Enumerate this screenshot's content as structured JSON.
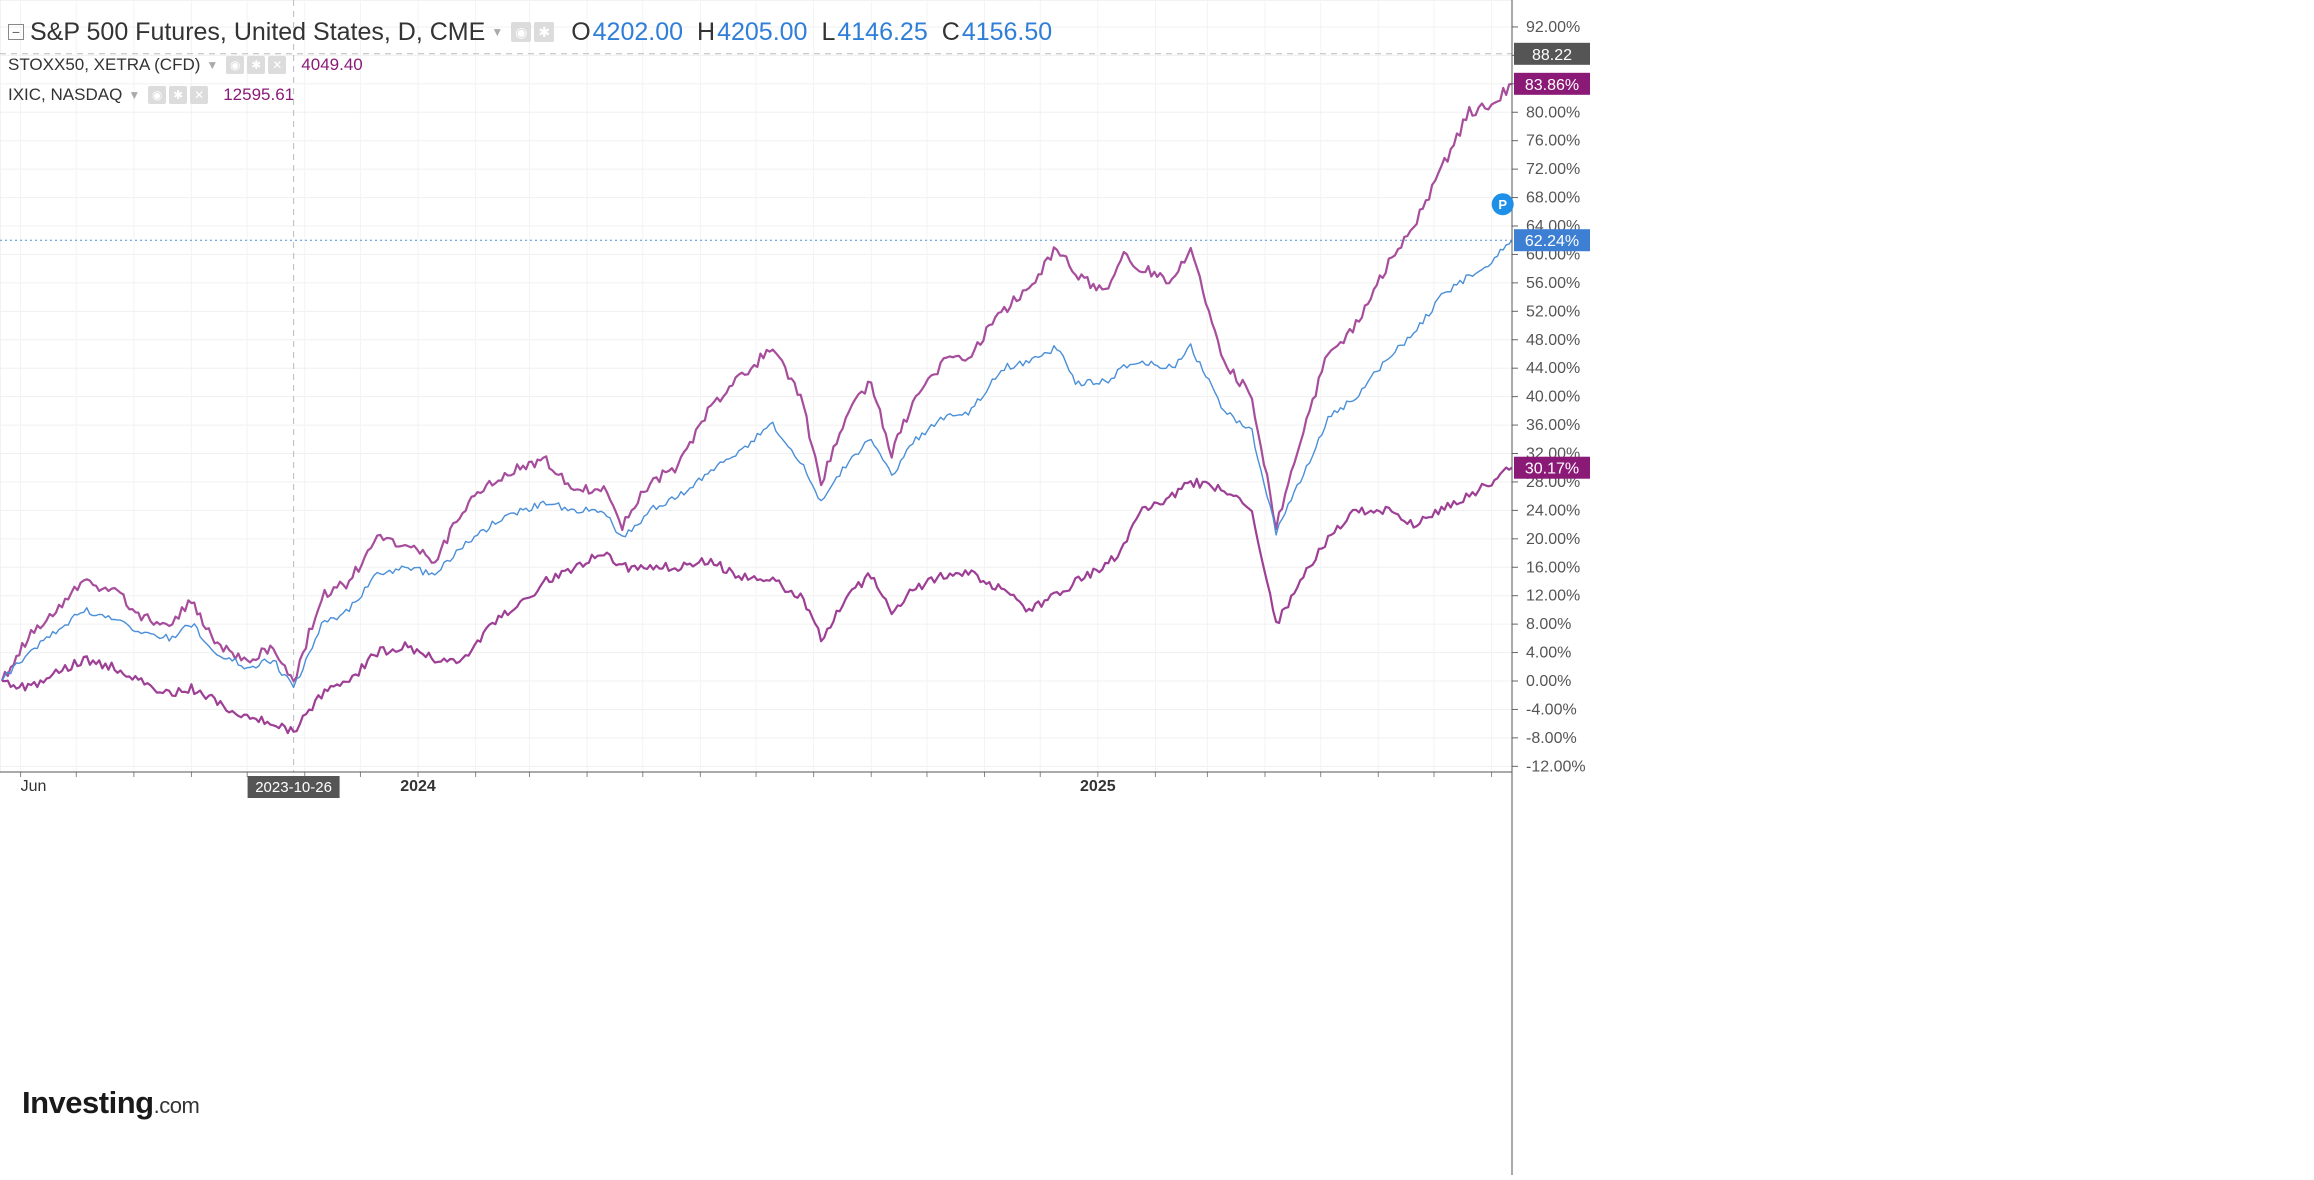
{
  "legend": {
    "main": {
      "symbol": "S&P 500 Futures, United States, D, CME",
      "o_label": "O",
      "o_value": "4202.00",
      "h_label": "H",
      "h_value": "4205.00",
      "l_label": "L",
      "l_value": "4146.25",
      "c_label": "C",
      "c_value": "4156.50"
    },
    "series": [
      {
        "label": "STOXX50, XETRA (CFD)",
        "value": "4049.40"
      },
      {
        "label": "IXIC, NASDAQ",
        "value": "12595.61"
      }
    ]
  },
  "logo": {
    "text": "Investing",
    "suffix": ".com"
  },
  "colors": {
    "sp500": "#4a8fd9",
    "stoxx": "#a64d9c",
    "ixic": "#9e3f96",
    "badge_purple": "#8b1a77",
    "badge_blue": "#3d7fd3",
    "badge_gray": "#555555"
  },
  "badges": {
    "crosshair_value": "88.22",
    "stoxx_last": "83.86%",
    "sp500_last": "62.24%",
    "ixic_last": "30.17%",
    "p_marker": "P",
    "date_hover": "2023-10-26"
  },
  "chart_data": {
    "type": "line",
    "title": "",
    "xlabel": "",
    "ylabel": "",
    "x_ticks": [
      {
        "date": "2023-06-01",
        "label": "Jun"
      },
      {
        "date": "2024-01-01",
        "label": "2024"
      },
      {
        "date": "2025-01-01",
        "label": "2025"
      }
    ],
    "x_range": [
      "2023-05-22",
      "2025-08-12"
    ],
    "ylim": [
      -12,
      94
    ],
    "y_ticks": [
      -12,
      -8,
      -4,
      0,
      4,
      8,
      12,
      16,
      20,
      24,
      28,
      32,
      36,
      40,
      44,
      48,
      52,
      56,
      60,
      64,
      68,
      72,
      76,
      80,
      84,
      88,
      92
    ],
    "y_tick_format": "percent_2dp",
    "grid": true,
    "crosshair": {
      "date": "2023-10-26",
      "value": 88.22
    },
    "series": [
      {
        "key": "stoxx",
        "points": [
          [
            "2023-05-22",
            0
          ],
          [
            "2023-06-05",
            6
          ],
          [
            "2023-06-20",
            10
          ],
          [
            "2023-07-05",
            14
          ],
          [
            "2023-07-20",
            13
          ],
          [
            "2023-08-05",
            9
          ],
          [
            "2023-08-20",
            8
          ],
          [
            "2023-09-01",
            11
          ],
          [
            "2023-09-15",
            5
          ],
          [
            "2023-10-01",
            3
          ],
          [
            "2023-10-15",
            5
          ],
          [
            "2023-10-26",
            0
          ],
          [
            "2023-11-10",
            12
          ],
          [
            "2023-11-25",
            14
          ],
          [
            "2023-12-10",
            20
          ],
          [
            "2023-12-25",
            19
          ],
          [
            "2024-01-10",
            17
          ],
          [
            "2024-01-25",
            24
          ],
          [
            "2024-02-10",
            28
          ],
          [
            "2024-02-25",
            30
          ],
          [
            "2024-03-10",
            31
          ],
          [
            "2024-03-25",
            27
          ],
          [
            "2024-04-10",
            27
          ],
          [
            "2024-04-20",
            22
          ],
          [
            "2024-05-05",
            28
          ],
          [
            "2024-05-20",
            30
          ],
          [
            "2024-06-05",
            38
          ],
          [
            "2024-06-20",
            42
          ],
          [
            "2024-07-10",
            47
          ],
          [
            "2024-07-25",
            40
          ],
          [
            "2024-08-05",
            28
          ],
          [
            "2024-08-20",
            38
          ],
          [
            "2024-09-01",
            42
          ],
          [
            "2024-09-12",
            32
          ],
          [
            "2024-09-25",
            40
          ],
          [
            "2024-10-10",
            45
          ],
          [
            "2024-10-25",
            46
          ],
          [
            "2024-11-10",
            52
          ],
          [
            "2024-11-25",
            55
          ],
          [
            "2024-12-10",
            61
          ],
          [
            "2024-12-20",
            57
          ],
          [
            "2025-01-05",
            55
          ],
          [
            "2025-01-15",
            60
          ],
          [
            "2025-01-25",
            58
          ],
          [
            "2025-02-10",
            56
          ],
          [
            "2025-02-20",
            61
          ],
          [
            "2025-03-10",
            45
          ],
          [
            "2025-03-25",
            40
          ],
          [
            "2025-04-07",
            22
          ],
          [
            "2025-04-20",
            34
          ],
          [
            "2025-05-05",
            46
          ],
          [
            "2025-05-20",
            50
          ],
          [
            "2025-06-05",
            58
          ],
          [
            "2025-06-20",
            64
          ],
          [
            "2025-07-05",
            72
          ],
          [
            "2025-07-20",
            80
          ],
          [
            "2025-08-01",
            81
          ],
          [
            "2025-08-12",
            84
          ]
        ]
      },
      {
        "key": "sp500",
        "points": [
          [
            "2023-05-22",
            0
          ],
          [
            "2023-06-05",
            4
          ],
          [
            "2023-06-20",
            7
          ],
          [
            "2023-07-05",
            10
          ],
          [
            "2023-07-20",
            9
          ],
          [
            "2023-08-05",
            7
          ],
          [
            "2023-08-20",
            6
          ],
          [
            "2023-09-01",
            8
          ],
          [
            "2023-09-15",
            4
          ],
          [
            "2023-10-01",
            2
          ],
          [
            "2023-10-15",
            3
          ],
          [
            "2023-10-26",
            -1
          ],
          [
            "2023-11-10",
            8
          ],
          [
            "2023-11-25",
            10
          ],
          [
            "2023-12-10",
            15
          ],
          [
            "2023-12-25",
            16
          ],
          [
            "2024-01-10",
            15
          ],
          [
            "2024-01-25",
            19
          ],
          [
            "2024-02-10",
            22
          ],
          [
            "2024-02-25",
            24
          ],
          [
            "2024-03-10",
            25
          ],
          [
            "2024-03-25",
            24
          ],
          [
            "2024-04-10",
            24
          ],
          [
            "2024-04-20",
            20
          ],
          [
            "2024-05-05",
            24
          ],
          [
            "2024-05-20",
            26
          ],
          [
            "2024-06-05",
            29
          ],
          [
            "2024-06-20",
            32
          ],
          [
            "2024-07-10",
            36
          ],
          [
            "2024-07-25",
            31
          ],
          [
            "2024-08-05",
            25
          ],
          [
            "2024-08-20",
            31
          ],
          [
            "2024-09-01",
            34
          ],
          [
            "2024-09-12",
            29
          ],
          [
            "2024-09-25",
            34
          ],
          [
            "2024-10-10",
            37
          ],
          [
            "2024-10-25",
            38
          ],
          [
            "2024-11-10",
            44
          ],
          [
            "2024-11-25",
            45
          ],
          [
            "2024-12-10",
            47
          ],
          [
            "2024-12-20",
            42
          ],
          [
            "2025-01-05",
            42
          ],
          [
            "2025-01-15",
            44
          ],
          [
            "2025-01-25",
            45
          ],
          [
            "2025-02-10",
            44
          ],
          [
            "2025-02-20",
            47
          ],
          [
            "2025-03-10",
            38
          ],
          [
            "2025-03-25",
            35
          ],
          [
            "2025-04-07",
            21
          ],
          [
            "2025-04-20",
            28
          ],
          [
            "2025-05-05",
            37
          ],
          [
            "2025-05-20",
            40
          ],
          [
            "2025-06-05",
            45
          ],
          [
            "2025-06-20",
            49
          ],
          [
            "2025-07-05",
            54
          ],
          [
            "2025-07-20",
            57
          ],
          [
            "2025-08-01",
            59
          ],
          [
            "2025-08-12",
            62
          ]
        ]
      },
      {
        "key": "ixic",
        "points": [
          [
            "2023-05-22",
            0
          ],
          [
            "2023-06-05",
            -1
          ],
          [
            "2023-06-20",
            1
          ],
          [
            "2023-07-05",
            3
          ],
          [
            "2023-07-20",
            2
          ],
          [
            "2023-08-05",
            0
          ],
          [
            "2023-08-20",
            -2
          ],
          [
            "2023-09-01",
            -1
          ],
          [
            "2023-09-15",
            -3
          ],
          [
            "2023-10-01",
            -5
          ],
          [
            "2023-10-15",
            -6
          ],
          [
            "2023-10-26",
            -7
          ],
          [
            "2023-11-10",
            -2
          ],
          [
            "2023-11-25",
            0
          ],
          [
            "2023-12-10",
            4
          ],
          [
            "2023-12-25",
            5
          ],
          [
            "2024-01-10",
            3
          ],
          [
            "2024-01-25",
            3
          ],
          [
            "2024-02-10",
            8
          ],
          [
            "2024-02-25",
            11
          ],
          [
            "2024-03-10",
            14
          ],
          [
            "2024-03-25",
            16
          ],
          [
            "2024-04-10",
            18
          ],
          [
            "2024-04-20",
            16
          ],
          [
            "2024-05-05",
            16
          ],
          [
            "2024-05-20",
            16
          ],
          [
            "2024-06-05",
            17
          ],
          [
            "2024-06-20",
            15
          ],
          [
            "2024-07-10",
            14
          ],
          [
            "2024-07-25",
            12
          ],
          [
            "2024-08-05",
            6
          ],
          [
            "2024-08-20",
            12
          ],
          [
            "2024-09-01",
            15
          ],
          [
            "2024-09-12",
            10
          ],
          [
            "2024-09-25",
            13
          ],
          [
            "2024-10-10",
            15
          ],
          [
            "2024-10-25",
            15
          ],
          [
            "2024-11-10",
            13
          ],
          [
            "2024-11-25",
            10
          ],
          [
            "2024-12-10",
            12
          ],
          [
            "2024-12-20",
            14
          ],
          [
            "2025-01-05",
            16
          ],
          [
            "2025-01-15",
            19
          ],
          [
            "2025-01-25",
            24
          ],
          [
            "2025-02-10",
            26
          ],
          [
            "2025-02-20",
            28
          ],
          [
            "2025-03-10",
            27
          ],
          [
            "2025-03-25",
            24
          ],
          [
            "2025-04-07",
            8
          ],
          [
            "2025-04-20",
            14
          ],
          [
            "2025-05-05",
            20
          ],
          [
            "2025-05-20",
            24
          ],
          [
            "2025-06-05",
            24
          ],
          [
            "2025-06-20",
            22
          ],
          [
            "2025-07-05",
            24
          ],
          [
            "2025-07-20",
            26
          ],
          [
            "2025-08-01",
            28
          ],
          [
            "2025-08-12",
            30
          ]
        ]
      }
    ]
  }
}
